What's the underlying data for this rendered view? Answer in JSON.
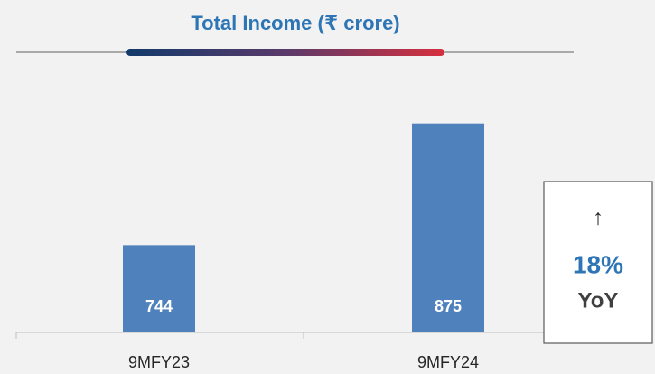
{
  "chart_data": {
    "type": "bar",
    "title": "Total Income (₹ crore)",
    "categories": [
      "9MFY23",
      "9MFY24"
    ],
    "values": [
      744,
      875
    ],
    "color": "#4f81bd",
    "ylim": [
      650,
      900
    ],
    "annotation": {
      "arrow": "↑",
      "value": "18%",
      "label": "YoY"
    }
  }
}
